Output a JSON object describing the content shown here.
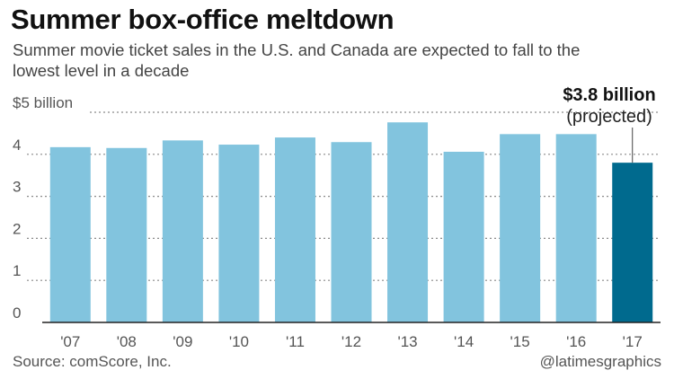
{
  "header": {
    "title": "Summer box-office meltdown",
    "subtitle": "Summer movie ticket sales in the U.S. and Canada are expected to fall to the lowest level in a decade"
  },
  "chart_data": {
    "type": "bar",
    "title": "Summer box-office meltdown",
    "subtitle": "Summer movie ticket sales in the U.S. and Canada are expected to fall to the lowest level in a decade",
    "categories": [
      "'07",
      "'08",
      "'09",
      "'10",
      "'11",
      "'12",
      "'13",
      "'14",
      "'15",
      "'16",
      "'17"
    ],
    "values": [
      4.17,
      4.15,
      4.33,
      4.23,
      4.4,
      4.29,
      4.76,
      4.06,
      4.48,
      4.48,
      3.8
    ],
    "highlight_index": 10,
    "ylim": [
      0,
      5
    ],
    "y_ticks": [
      0,
      1,
      2,
      3,
      4,
      5
    ],
    "y_tick_labels": [
      "0",
      "1",
      "2",
      "3",
      "4",
      "$5 billion"
    ],
    "xlabel": "",
    "ylabel": "",
    "grid": true,
    "annotation": {
      "value_text": "$3.8 billion",
      "note_text": "(projected)"
    },
    "colors": {
      "bar": "#82c4de",
      "highlight": "#006a8e",
      "grid": "#8a8a8a",
      "axis": "#222222"
    }
  },
  "footer": {
    "source": "Source: comScore, Inc.",
    "credit": "@latimesgraphics"
  }
}
